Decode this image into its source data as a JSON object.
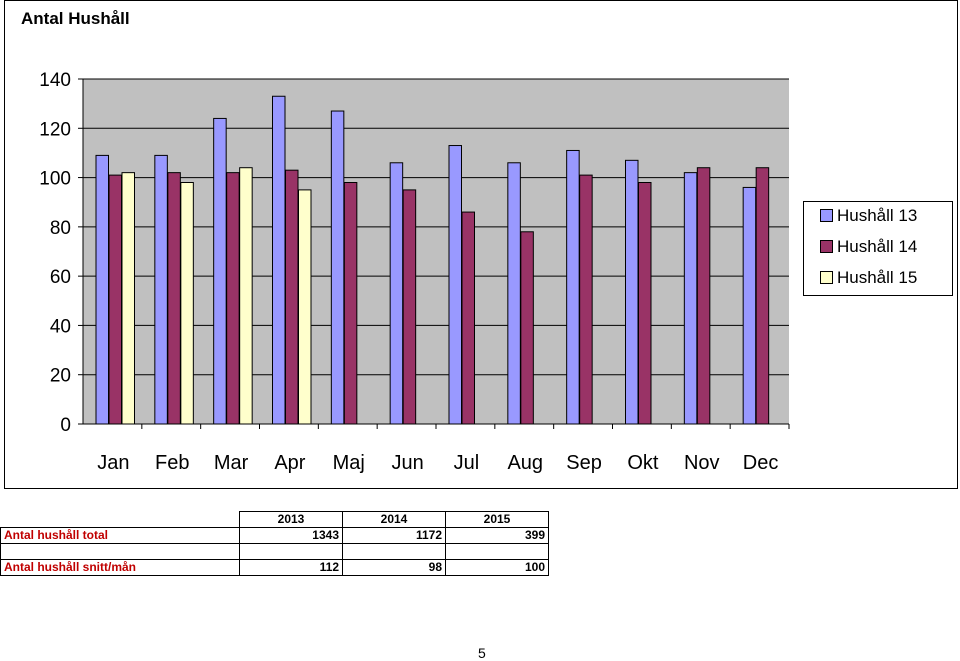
{
  "chart_data": {
    "type": "bar",
    "title": "Antal Hushåll",
    "categories": [
      "Jan",
      "Feb",
      "Mar",
      "Apr",
      "Maj",
      "Jun",
      "Jul",
      "Aug",
      "Sep",
      "Okt",
      "Nov",
      "Dec"
    ],
    "series": [
      {
        "name": "Hushåll 13",
        "color": "#9999ff",
        "values": [
          109,
          109,
          124,
          133,
          127,
          106,
          113,
          106,
          111,
          107,
          102,
          96
        ]
      },
      {
        "name": "Hushåll 14",
        "color": "#993366",
        "values": [
          101,
          102,
          102,
          103,
          98,
          95,
          86,
          78,
          101,
          98,
          104,
          104
        ]
      },
      {
        "name": "Hushåll 15",
        "color": "#ffffcc",
        "values": [
          102,
          98,
          104,
          95,
          null,
          null,
          null,
          null,
          null,
          null,
          null,
          null
        ]
      }
    ],
    "ylim": [
      0,
      140
    ],
    "yticks": [
      0,
      20,
      40,
      60,
      80,
      100,
      120,
      140
    ],
    "xlabel": "",
    "ylabel": "",
    "grid": true,
    "plot_background": "#c0c0c0",
    "legend": "right"
  },
  "summary": {
    "years": [
      "2013",
      "2014",
      "2015"
    ],
    "rows": [
      {
        "label": "Antal hushåll total",
        "values": [
          "1343",
          "1172",
          "399"
        ]
      },
      {
        "label": "Antal hushåll snitt/mån",
        "values": [
          "112",
          "98",
          "100"
        ]
      }
    ]
  },
  "page_number": "5"
}
